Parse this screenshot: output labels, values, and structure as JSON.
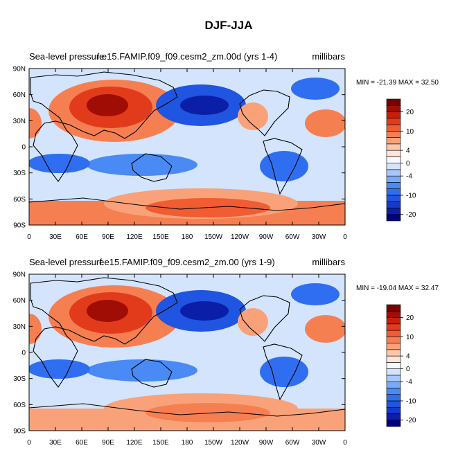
{
  "figure_title": "DJF-JJA",
  "chart_data": [
    {
      "type": "heatmap",
      "title_left": "Sea-level pressure",
      "title_center": "f.e15.FAMIP.f09_f09.cesm2_zm.00d (yrs 1-4)",
      "units": "millibars",
      "stats": "MIN = -21.39 MAX =  32.50",
      "min": -21.39,
      "max": 32.5,
      "x_ticks": [
        "0",
        "30E",
        "60E",
        "90E",
        "120E",
        "150E",
        "180",
        "150W",
        "120W",
        "90W",
        "60W",
        "30W",
        "0"
      ],
      "y_ticks": [
        "90N",
        "60N",
        "30N",
        "0",
        "30S",
        "60S",
        "90S"
      ],
      "xlim": [
        0,
        360
      ],
      "ylim": [
        -90,
        90
      ],
      "colorbar_levels": [
        -24,
        -20,
        -16,
        -12,
        -10,
        -8,
        -6,
        -4,
        -2,
        0,
        2,
        4,
        6,
        8,
        10,
        12,
        16,
        20,
        24
      ],
      "colorbar_labels": [
        "20",
        "10",
        "4",
        "0",
        "-4",
        "-10",
        "-20"
      ]
    },
    {
      "type": "heatmap",
      "title_left": "Sea-level pressure",
      "title_center": "f.e15.FAMIP.f09_f09.cesm2_zm.00 (yrs 1-9)",
      "units": "millibars",
      "stats": "MIN = -19.04 MAX =  32.47",
      "min": -19.04,
      "max": 32.47,
      "x_ticks": [
        "0",
        "30E",
        "60E",
        "90E",
        "120E",
        "150E",
        "180",
        "150W",
        "120W",
        "90W",
        "60W",
        "30W",
        "0"
      ],
      "y_ticks": [
        "90N",
        "60N",
        "30N",
        "0",
        "30S",
        "60S",
        "90S"
      ],
      "xlim": [
        0,
        360
      ],
      "ylim": [
        -90,
        90
      ],
      "colorbar_levels": [
        -24,
        -20,
        -16,
        -12,
        -10,
        -8,
        -6,
        -4,
        -2,
        0,
        2,
        4,
        6,
        8,
        10,
        12,
        16,
        20,
        24
      ],
      "colorbar_labels": [
        "20",
        "10",
        "4",
        "0",
        "-4",
        "-10",
        "-20"
      ]
    }
  ],
  "colors": {
    "palette": [
      "#000080",
      "#0a1ea8",
      "#1539c8",
      "#1f55e0",
      "#2f6ef0",
      "#4a8af5",
      "#7aaaf7",
      "#a7c8fa",
      "#d3e4fc",
      "#f5f9fe",
      "#fde6d8",
      "#fcc7a8",
      "#f9a279",
      "#f67f52",
      "#f15c32",
      "#e23b1c",
      "#c71f0c",
      "#a00d04",
      "#7a0000"
    ]
  }
}
